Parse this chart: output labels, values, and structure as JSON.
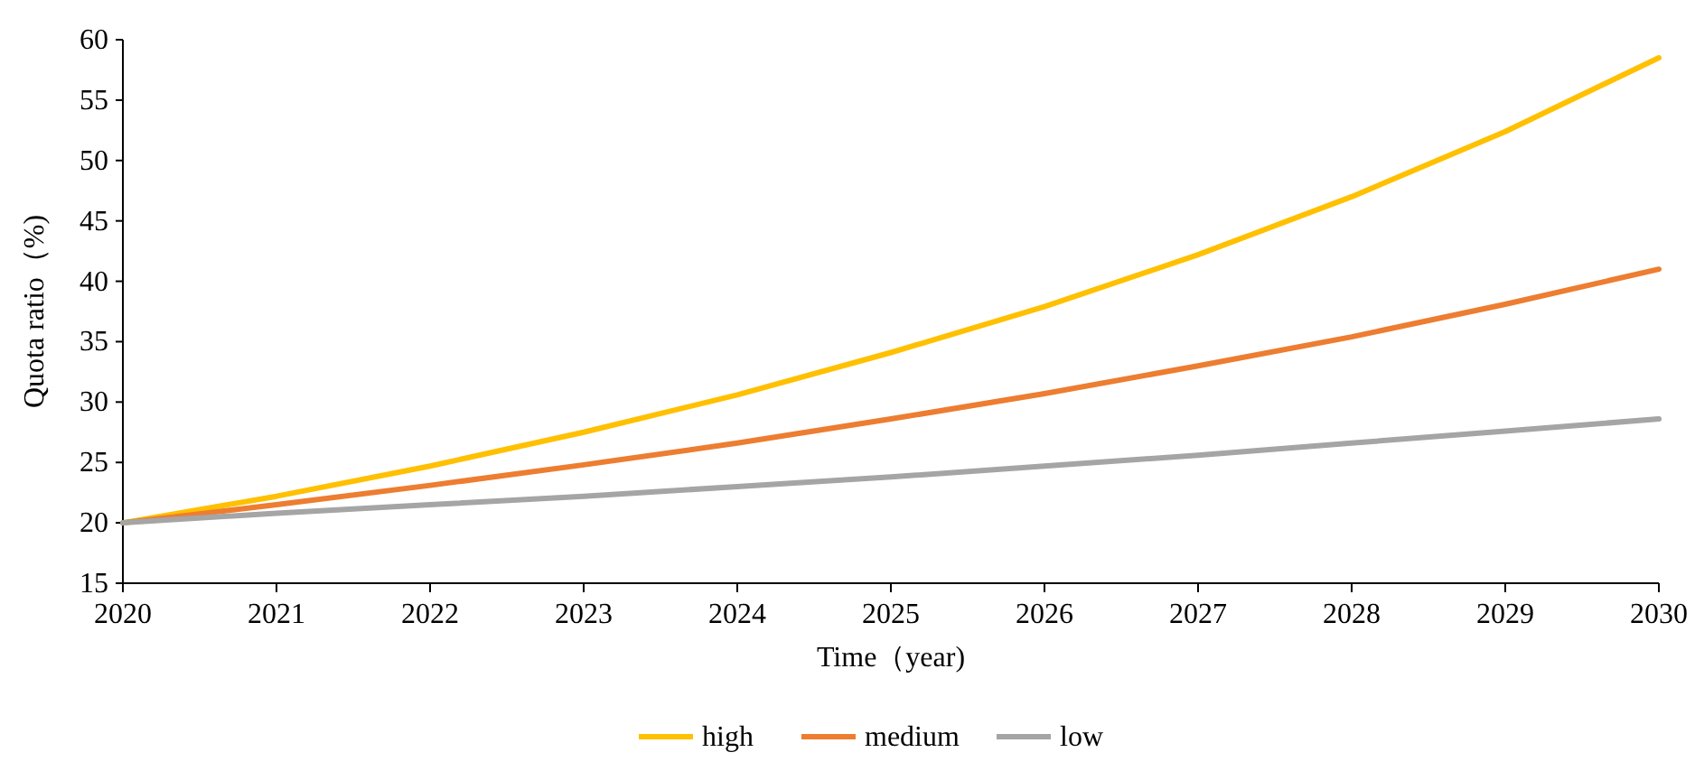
{
  "chart_data": {
    "type": "line",
    "xlabel": "Time（year)",
    "ylabel": "Quota ratio（%)",
    "x": [
      2020,
      2021,
      2022,
      2023,
      2024,
      2025,
      2026,
      2027,
      2028,
      2029,
      2030
    ],
    "series": [
      {
        "name": "high",
        "color": "#ffc000",
        "values": [
          20,
          22.2,
          24.7,
          27.5,
          30.6,
          34.1,
          37.9,
          42.2,
          47,
          52.4,
          58.5
        ]
      },
      {
        "name": "medium",
        "color": "#ed7d31",
        "values": [
          20,
          21.5,
          23.1,
          24.8,
          26.6,
          28.6,
          30.7,
          33,
          35.4,
          38.1,
          41
        ]
      },
      {
        "name": "low",
        "color": "#a5a5a5",
        "values": [
          20,
          20.8,
          21.5,
          22.2,
          23,
          23.8,
          24.7,
          25.6,
          26.6,
          27.6,
          28.6
        ]
      }
    ],
    "xlim": [
      2020,
      2030
    ],
    "xticks": [
      2020,
      2021,
      2022,
      2023,
      2024,
      2025,
      2026,
      2027,
      2028,
      2029,
      2030
    ],
    "ylim": [
      15,
      60
    ],
    "yticks": [
      15,
      20,
      25,
      30,
      35,
      40,
      45,
      50,
      55,
      60
    ],
    "grid": false,
    "legend": "bottom",
    "marker": "none",
    "line_style": "solid"
  }
}
